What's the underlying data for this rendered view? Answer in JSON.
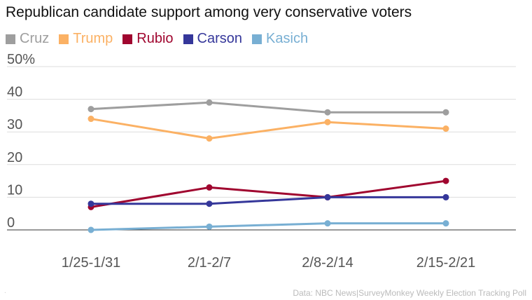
{
  "chart_data": {
    "type": "line",
    "title": "Republican candidate support among very conservative voters",
    "categories": [
      "1/25-1/31",
      "2/1-2/7",
      "2/8-2/14",
      "2/15-2/21"
    ],
    "y_ticks": [
      "0",
      "10",
      "20",
      "30",
      "40",
      "50%"
    ],
    "ylim": [
      0,
      50
    ],
    "grid": true,
    "legend_position": "top-left",
    "series": [
      {
        "name": "Cruz",
        "color": "#9e9e9e",
        "values": [
          37,
          39,
          36,
          36
        ]
      },
      {
        "name": "Trump",
        "color": "#fbb164",
        "values": [
          34,
          28,
          33,
          31
        ]
      },
      {
        "name": "Rubio",
        "color": "#a0062f",
        "values": [
          7,
          13,
          10,
          15
        ]
      },
      {
        "name": "Carson",
        "color": "#35379a",
        "values": [
          8,
          8,
          10,
          10
        ]
      },
      {
        "name": "Kasich",
        "color": "#78afd3",
        "values": [
          0,
          1,
          2,
          2
        ]
      }
    ],
    "source": "Data: NBC News|SurveyMonkey Weekly Election Tracking Poll"
  },
  "corner_mark": "."
}
